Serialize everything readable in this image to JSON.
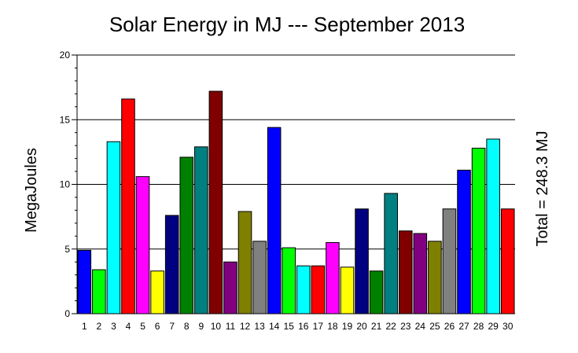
{
  "chart_data": {
    "type": "bar",
    "title": "Solar Energy in MJ --- September 2013",
    "xlabel": "",
    "ylabel": "MegaJoules",
    "right_label": "Total = 248.3 MJ",
    "ylim": [
      0,
      20
    ],
    "yticks": [
      "0",
      "5",
      "10",
      "15",
      "20"
    ],
    "grid": "horizontal",
    "categories": [
      "1",
      "2",
      "3",
      "4",
      "5",
      "6",
      "7",
      "8",
      "9",
      "10",
      "11",
      "12",
      "13",
      "14",
      "15",
      "16",
      "17",
      "18",
      "19",
      "20",
      "21",
      "22",
      "23",
      "24",
      "25",
      "26",
      "27",
      "28",
      "29",
      "30"
    ],
    "values": [
      4.9,
      3.4,
      13.3,
      16.6,
      10.6,
      3.3,
      7.6,
      12.1,
      12.9,
      17.2,
      4.0,
      7.9,
      5.6,
      14.4,
      5.1,
      3.7,
      3.7,
      5.5,
      3.6,
      8.1,
      3.3,
      9.3,
      6.4,
      6.2,
      5.6,
      8.1,
      11.1,
      12.8,
      13.5,
      8.1
    ],
    "colors": [
      "#0000ff",
      "#00ff00",
      "#00ffff",
      "#ff0000",
      "#ff00ff",
      "#ffff00",
      "#000080",
      "#008000",
      "#008080",
      "#800000",
      "#800080",
      "#808000",
      "#808080",
      "#0000ff",
      "#00ff00",
      "#00ffff",
      "#ff0000",
      "#ff00ff",
      "#ffff00",
      "#000080",
      "#008000",
      "#008080",
      "#800000",
      "#800080",
      "#808000",
      "#808080",
      "#0000ff",
      "#00ff00",
      "#00ffff",
      "#ff0000"
    ]
  }
}
